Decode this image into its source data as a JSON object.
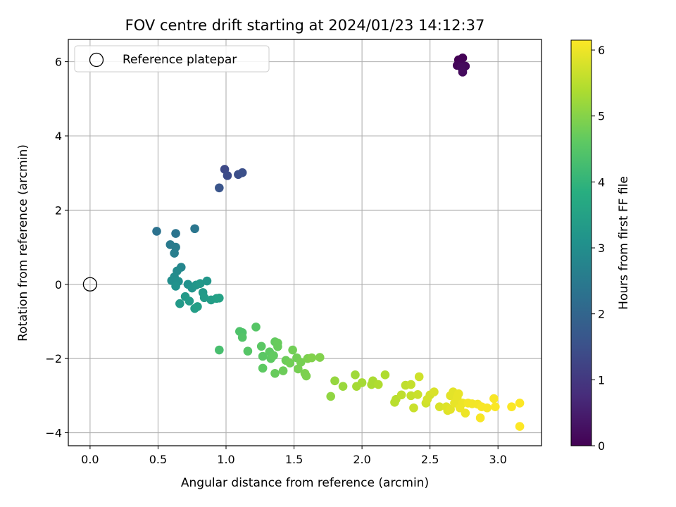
{
  "chart_data": {
    "type": "scatter",
    "title": "FOV centre drift starting at 2024/01/23 14:12:37",
    "xlabel": "Angular distance from reference (arcmin)",
    "ylabel": "Rotation from reference (arcmin)",
    "xlim": [
      -0.16,
      3.32
    ],
    "ylim": [
      -4.35,
      6.6
    ],
    "xticks": [
      0.0,
      0.5,
      1.0,
      1.5,
      2.0,
      2.5,
      3.0
    ],
    "xtick_labels": [
      "0.0",
      "0.5",
      "1.0",
      "1.5",
      "2.0",
      "2.5",
      "3.0"
    ],
    "yticks": [
      -4,
      -2,
      0,
      2,
      4,
      6
    ],
    "ytick_labels": [
      "−4",
      "−2",
      "0",
      "2",
      "4",
      "6"
    ],
    "grid": true,
    "colormap": "viridis",
    "colorbar": {
      "label": "Hours from first FF file",
      "range": [
        0,
        6.15
      ],
      "ticks": [
        0,
        1,
        2,
        3,
        4,
        5,
        6
      ],
      "tick_labels": [
        "0",
        "1",
        "2",
        "3",
        "4",
        "5",
        "6"
      ]
    },
    "legend": {
      "position": "top-left",
      "entries": [
        "Reference platepar"
      ]
    },
    "reference_point": {
      "x": 0.0,
      "y": 0.0
    },
    "points": [
      {
        "x": 2.71,
        "y": 6.05,
        "c": 0.0
      },
      {
        "x": 2.74,
        "y": 6.1,
        "c": 0.03
      },
      {
        "x": 2.72,
        "y": 5.95,
        "c": 0.06
      },
      {
        "x": 2.7,
        "y": 5.9,
        "c": 0.09
      },
      {
        "x": 2.76,
        "y": 5.88,
        "c": 0.12
      },
      {
        "x": 2.73,
        "y": 5.85,
        "c": 0.15
      },
      {
        "x": 2.74,
        "y": 5.72,
        "c": 0.18
      },
      {
        "x": 0.99,
        "y": 3.1,
        "c": 1.35
      },
      {
        "x": 1.01,
        "y": 2.93,
        "c": 1.4
      },
      {
        "x": 1.09,
        "y": 2.96,
        "c": 1.45
      },
      {
        "x": 1.12,
        "y": 3.01,
        "c": 1.5
      },
      {
        "x": 0.95,
        "y": 2.6,
        "c": 1.6
      },
      {
        "x": 0.49,
        "y": 1.43,
        "c": 2.3
      },
      {
        "x": 0.63,
        "y": 1.37,
        "c": 2.35
      },
      {
        "x": 0.77,
        "y": 1.5,
        "c": 2.4
      },
      {
        "x": 0.59,
        "y": 1.07,
        "c": 2.5
      },
      {
        "x": 0.63,
        "y": 1.0,
        "c": 2.55
      },
      {
        "x": 0.62,
        "y": 0.84,
        "c": 2.6
      },
      {
        "x": 0.67,
        "y": 0.46,
        "c": 2.8
      },
      {
        "x": 0.64,
        "y": 0.36,
        "c": 2.9
      },
      {
        "x": 0.62,
        "y": 0.2,
        "c": 2.95
      },
      {
        "x": 0.6,
        "y": 0.1,
        "c": 3.0
      },
      {
        "x": 0.65,
        "y": 0.08,
        "c": 3.05
      },
      {
        "x": 0.63,
        "y": -0.05,
        "c": 3.1
      },
      {
        "x": 0.72,
        "y": 0.0,
        "c": 3.1
      },
      {
        "x": 0.75,
        "y": -0.1,
        "c": 3.15
      },
      {
        "x": 0.78,
        "y": -0.02,
        "c": 3.2
      },
      {
        "x": 0.81,
        "y": 0.02,
        "c": 3.25
      },
      {
        "x": 0.86,
        "y": 0.09,
        "c": 3.2
      },
      {
        "x": 0.83,
        "y": -0.22,
        "c": 3.3
      },
      {
        "x": 0.84,
        "y": -0.36,
        "c": 3.35
      },
      {
        "x": 0.89,
        "y": -0.42,
        "c": 3.4
      },
      {
        "x": 0.93,
        "y": -0.38,
        "c": 3.45
      },
      {
        "x": 0.95,
        "y": -0.37,
        "c": 3.5
      },
      {
        "x": 0.7,
        "y": -0.33,
        "c": 3.3
      },
      {
        "x": 0.73,
        "y": -0.45,
        "c": 3.35
      },
      {
        "x": 0.66,
        "y": -0.52,
        "c": 3.3
      },
      {
        "x": 0.77,
        "y": -0.65,
        "c": 3.4
      },
      {
        "x": 0.79,
        "y": -0.6,
        "c": 3.45
      },
      {
        "x": 0.95,
        "y": -1.77,
        "c": 4.3
      },
      {
        "x": 1.1,
        "y": -1.27,
        "c": 4.4
      },
      {
        "x": 1.12,
        "y": -1.3,
        "c": 4.4
      },
      {
        "x": 1.12,
        "y": -1.43,
        "c": 4.45
      },
      {
        "x": 1.22,
        "y": -1.15,
        "c": 4.5
      },
      {
        "x": 1.16,
        "y": -1.8,
        "c": 4.5
      },
      {
        "x": 1.26,
        "y": -1.67,
        "c": 4.55
      },
      {
        "x": 1.27,
        "y": -1.94,
        "c": 4.55
      },
      {
        "x": 1.27,
        "y": -2.26,
        "c": 4.6
      },
      {
        "x": 1.32,
        "y": -1.82,
        "c": 4.6
      },
      {
        "x": 1.33,
        "y": -2.0,
        "c": 4.6
      },
      {
        "x": 1.35,
        "y": -1.92,
        "c": 4.65
      },
      {
        "x": 1.36,
        "y": -1.55,
        "c": 4.65
      },
      {
        "x": 1.38,
        "y": -1.58,
        "c": 4.7
      },
      {
        "x": 1.38,
        "y": -1.68,
        "c": 4.7
      },
      {
        "x": 1.36,
        "y": -2.4,
        "c": 4.7
      },
      {
        "x": 1.42,
        "y": -2.33,
        "c": 4.75
      },
      {
        "x": 1.44,
        "y": -2.05,
        "c": 4.75
      },
      {
        "x": 1.47,
        "y": -2.12,
        "c": 4.8
      },
      {
        "x": 1.49,
        "y": -1.77,
        "c": 4.8
      },
      {
        "x": 1.52,
        "y": -1.98,
        "c": 4.8
      },
      {
        "x": 1.53,
        "y": -2.28,
        "c": 4.85
      },
      {
        "x": 1.55,
        "y": -2.1,
        "c": 4.85
      },
      {
        "x": 1.58,
        "y": -2.4,
        "c": 4.9
      },
      {
        "x": 1.59,
        "y": -2.47,
        "c": 4.9
      },
      {
        "x": 1.6,
        "y": -2.0,
        "c": 4.9
      },
      {
        "x": 1.63,
        "y": -1.98,
        "c": 4.95
      },
      {
        "x": 1.69,
        "y": -1.97,
        "c": 4.95
      },
      {
        "x": 1.77,
        "y": -3.02,
        "c": 5.1
      },
      {
        "x": 1.8,
        "y": -2.6,
        "c": 5.15
      },
      {
        "x": 1.86,
        "y": -2.75,
        "c": 5.2
      },
      {
        "x": 1.95,
        "y": -2.44,
        "c": 5.25
      },
      {
        "x": 1.96,
        "y": -2.75,
        "c": 5.3
      },
      {
        "x": 2.0,
        "y": -2.65,
        "c": 5.3
      },
      {
        "x": 2.07,
        "y": -2.7,
        "c": 5.35
      },
      {
        "x": 2.08,
        "y": -2.6,
        "c": 5.35
      },
      {
        "x": 2.12,
        "y": -2.7,
        "c": 5.4
      },
      {
        "x": 2.17,
        "y": -2.44,
        "c": 5.4
      },
      {
        "x": 2.24,
        "y": -3.18,
        "c": 5.5
      },
      {
        "x": 2.25,
        "y": -3.1,
        "c": 5.5
      },
      {
        "x": 2.29,
        "y": -2.98,
        "c": 5.55
      },
      {
        "x": 2.32,
        "y": -2.72,
        "c": 5.55
      },
      {
        "x": 2.36,
        "y": -2.7,
        "c": 5.6
      },
      {
        "x": 2.36,
        "y": -3.0,
        "c": 5.6
      },
      {
        "x": 2.38,
        "y": -3.33,
        "c": 5.65
      },
      {
        "x": 2.41,
        "y": -2.97,
        "c": 5.65
      },
      {
        "x": 2.42,
        "y": -2.49,
        "c": 5.7
      },
      {
        "x": 2.47,
        "y": -3.2,
        "c": 5.7
      },
      {
        "x": 2.48,
        "y": -3.1,
        "c": 5.75
      },
      {
        "x": 2.5,
        "y": -2.98,
        "c": 5.75
      },
      {
        "x": 2.53,
        "y": -2.9,
        "c": 5.8
      },
      {
        "x": 2.57,
        "y": -3.3,
        "c": 5.8
      },
      {
        "x": 2.62,
        "y": -3.3,
        "c": 5.85
      },
      {
        "x": 2.63,
        "y": -3.4,
        "c": 5.85
      },
      {
        "x": 2.65,
        "y": -3.37,
        "c": 5.9
      },
      {
        "x": 2.65,
        "y": -3.0,
        "c": 5.9
      },
      {
        "x": 2.67,
        "y": -2.9,
        "c": 5.9
      },
      {
        "x": 2.68,
        "y": -3.2,
        "c": 5.95
      },
      {
        "x": 2.7,
        "y": -3.05,
        "c": 5.95
      },
      {
        "x": 2.71,
        "y": -2.95,
        "c": 5.95
      },
      {
        "x": 2.72,
        "y": -3.33,
        "c": 6.0
      },
      {
        "x": 2.74,
        "y": -3.2,
        "c": 6.0
      },
      {
        "x": 2.76,
        "y": -3.47,
        "c": 6.0
      },
      {
        "x": 2.78,
        "y": -3.2,
        "c": 6.05
      },
      {
        "x": 2.81,
        "y": -3.22,
        "c": 6.05
      },
      {
        "x": 2.85,
        "y": -3.23,
        "c": 6.05
      },
      {
        "x": 2.87,
        "y": -3.6,
        "c": 6.1
      },
      {
        "x": 2.88,
        "y": -3.3,
        "c": 6.1
      },
      {
        "x": 2.92,
        "y": -3.33,
        "c": 6.1
      },
      {
        "x": 2.97,
        "y": -3.08,
        "c": 6.1
      },
      {
        "x": 2.98,
        "y": -3.3,
        "c": 6.12
      },
      {
        "x": 3.1,
        "y": -3.3,
        "c": 6.13
      },
      {
        "x": 3.16,
        "y": -3.2,
        "c": 6.14
      },
      {
        "x": 3.16,
        "y": -3.83,
        "c": 6.15
      }
    ]
  }
}
